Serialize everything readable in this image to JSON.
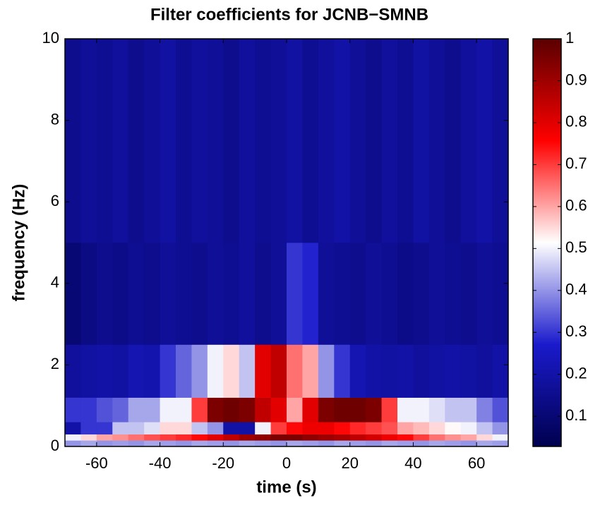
{
  "chart_data": {
    "type": "heatmap",
    "title": "Filter coefficients for JCNB−SMNB",
    "x_label": "time (s)",
    "y_label": "frequency (Hz)",
    "x": [
      -70,
      -65,
      -60,
      -55,
      -50,
      -45,
      -40,
      -35,
      -30,
      -25,
      -20,
      -15,
      -10,
      -5,
      0,
      5,
      10,
      15,
      20,
      25,
      30,
      35,
      40,
      45,
      50,
      55,
      60,
      65,
      70
    ],
    "y": [
      0,
      0.15,
      0.3,
      0.6,
      1.2,
      2.5,
      5,
      10
    ],
    "values": [
      [
        0.4,
        0.42,
        0.4,
        0.41,
        0.4,
        0.42,
        0.41,
        0.4,
        0.42,
        0.41,
        0.4,
        0.42,
        0.41,
        0.4,
        0.42,
        0.41,
        0.4,
        0.42,
        0.41,
        0.4,
        0.42,
        0.41,
        0.4,
        0.42,
        0.41,
        0.4,
        0.42,
        0.41
      ],
      [
        0.5,
        0.55,
        0.6,
        0.62,
        0.65,
        0.68,
        0.7,
        0.72,
        0.75,
        0.8,
        0.85,
        0.9,
        0.92,
        0.95,
        0.95,
        0.92,
        0.9,
        0.88,
        0.85,
        0.82,
        0.78,
        0.75,
        0.7,
        0.65,
        0.62,
        0.6,
        0.55,
        0.5
      ],
      [
        0.2,
        0.3,
        0.3,
        0.45,
        0.45,
        0.48,
        0.55,
        0.55,
        0.45,
        0.4,
        0.2,
        0.2,
        0.5,
        0.7,
        0.75,
        0.78,
        0.78,
        0.75,
        0.72,
        0.7,
        0.68,
        0.6,
        0.58,
        0.55,
        0.52,
        0.5,
        0.45,
        0.4
      ],
      [
        0.3,
        0.3,
        0.33,
        0.35,
        0.42,
        0.42,
        0.5,
        0.5,
        0.7,
        0.95,
        0.97,
        0.95,
        0.85,
        0.8,
        0.6,
        0.8,
        0.95,
        0.97,
        0.97,
        0.95,
        0.7,
        0.5,
        0.5,
        0.48,
        0.45,
        0.45,
        0.38,
        0.33
      ],
      [
        0.18,
        0.19,
        0.2,
        0.19,
        0.22,
        0.21,
        0.3,
        0.35,
        0.4,
        0.5,
        0.55,
        0.45,
        0.8,
        0.85,
        0.65,
        0.6,
        0.4,
        0.3,
        0.22,
        0.2,
        0.19,
        0.2,
        0.18,
        0.19,
        0.2,
        0.19,
        0.18,
        0.2
      ],
      [
        0.1,
        0.13,
        0.15,
        0.14,
        0.16,
        0.15,
        0.17,
        0.16,
        0.15,
        0.17,
        0.16,
        0.18,
        0.15,
        0.17,
        0.3,
        0.28,
        0.17,
        0.16,
        0.15,
        0.17,
        0.16,
        0.14,
        0.15,
        0.17,
        0.16,
        0.15,
        0.17,
        0.16
      ],
      [
        0.15,
        0.17,
        0.16,
        0.18,
        0.15,
        0.17,
        0.19,
        0.16,
        0.18,
        0.17,
        0.15,
        0.18,
        0.16,
        0.17,
        0.19,
        0.16,
        0.18,
        0.2,
        0.17,
        0.15,
        0.18,
        0.16,
        0.19,
        0.17,
        0.15,
        0.18,
        0.2,
        0.17
      ]
    ],
    "xlim": [
      -70,
      70
    ],
    "ylim": [
      0,
      10
    ],
    "xticks": [
      -60,
      -40,
      -20,
      0,
      20,
      40,
      60
    ],
    "yticks": [
      0,
      2,
      4,
      6,
      8,
      10
    ],
    "clim": [
      0.028,
      1
    ],
    "cticks": [
      0.1,
      0.2,
      0.3,
      0.4,
      0.5,
      0.6,
      0.7,
      0.8,
      0.9,
      1
    ],
    "colormap": [
      "#00004f",
      "#1a1acc",
      "#ffffff",
      "#ff0000",
      "#5a0000"
    ]
  }
}
